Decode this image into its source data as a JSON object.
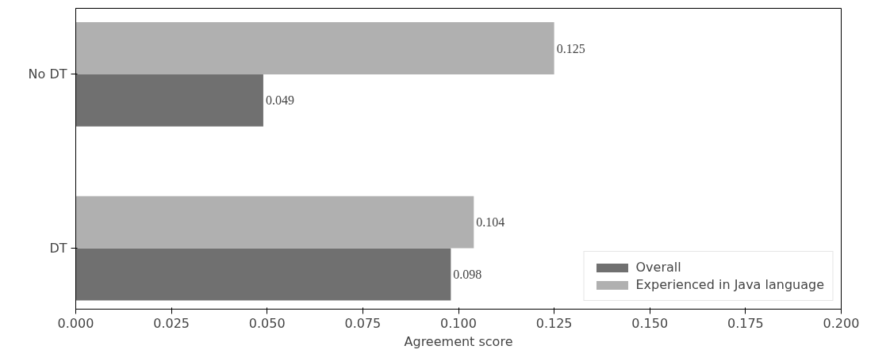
{
  "chart_data": {
    "type": "bar",
    "orientation": "horizontal",
    "categories": [
      "No DT",
      "DT"
    ],
    "xlabel": "Agreement score",
    "series": [
      {
        "name": "Overall",
        "color": "#707070",
        "values": [
          0.049,
          0.098
        ]
      },
      {
        "name": "Experienced in Java language",
        "color": "#b0b0b0",
        "values": [
          0.125,
          0.104
        ]
      }
    ],
    "xlim": [
      0,
      0.2
    ],
    "xticks": [
      {
        "value": 0,
        "label": "0.000"
      },
      0.025,
      {
        "value": 0.05,
        "label": "0.050"
      },
      0.075,
      {
        "value": 0.1,
        "label": "0.100"
      },
      0.125,
      {
        "value": 0.15,
        "label": "0.150"
      },
      0.175,
      {
        "value": 0.2,
        "label": "0.200"
      }
    ],
    "data_labels": true,
    "legend": "bottom right",
    "grid": false
  }
}
